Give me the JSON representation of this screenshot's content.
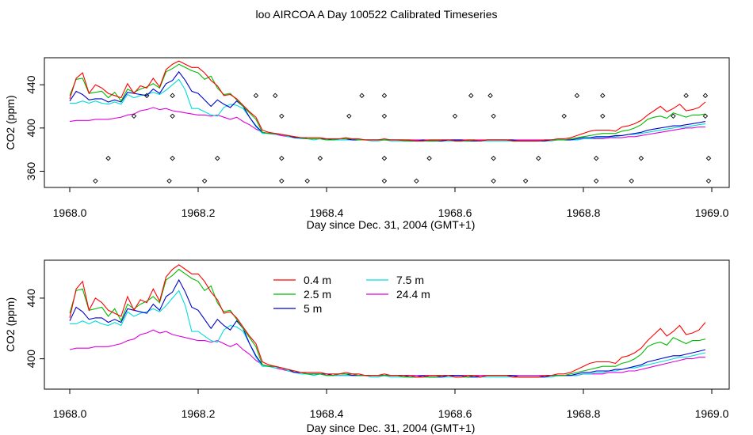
{
  "page": {
    "title": "loo AIRCOA A  Day 100522  Calibrated Timeseries"
  },
  "chart_data": [
    {
      "type": "line",
      "title": "",
      "xlabel": "Day since Dec. 31, 2004 (GMT+1)",
      "ylabel": "CO2 (ppm)",
      "xlim": [
        1968.0,
        1969.0
      ],
      "ylim": [
        345,
        465
      ],
      "xticks": [
        "1968.0",
        "1968.2",
        "1968.4",
        "1968.6",
        "1968.8",
        "1969.0"
      ],
      "yticks": [
        "360",
        "400",
        "440"
      ],
      "grid": false,
      "legend": null,
      "colors": [
        "#ff0000",
        "#00bb00",
        "#0000cc",
        "#00dddd",
        "#dd00dd"
      ],
      "marker_series": {
        "symbol": "diamond",
        "points": [
          [
            1968.04,
            351
          ],
          [
            1968.06,
            372
          ],
          [
            1968.1,
            411
          ],
          [
            1968.12,
            430
          ],
          [
            1968.155,
            351
          ],
          [
            1968.16,
            372
          ],
          [
            1968.16,
            411
          ],
          [
            1968.16,
            430
          ],
          [
            1968.21,
            351
          ],
          [
            1968.23,
            372
          ],
          [
            1968.29,
            430
          ],
          [
            1968.32,
            430
          ],
          [
            1968.33,
            411
          ],
          [
            1968.33,
            372
          ],
          [
            1968.33,
            351
          ],
          [
            1968.37,
            351
          ],
          [
            1968.39,
            372
          ],
          [
            1968.435,
            411
          ],
          [
            1968.455,
            430
          ],
          [
            1968.49,
            430
          ],
          [
            1968.49,
            411
          ],
          [
            1968.49,
            372
          ],
          [
            1968.49,
            351
          ],
          [
            1968.54,
            351
          ],
          [
            1968.56,
            372
          ],
          [
            1968.6,
            411
          ],
          [
            1968.625,
            430
          ],
          [
            1968.655,
            430
          ],
          [
            1968.66,
            411
          ],
          [
            1968.66,
            372
          ],
          [
            1968.66,
            351
          ],
          [
            1968.71,
            351
          ],
          [
            1968.73,
            372
          ],
          [
            1968.77,
            411
          ],
          [
            1968.79,
            430
          ],
          [
            1968.82,
            372
          ],
          [
            1968.82,
            351
          ],
          [
            1968.83,
            430
          ],
          [
            1968.83,
            411
          ],
          [
            1968.875,
            351
          ],
          [
            1968.89,
            372
          ],
          [
            1968.94,
            411
          ],
          [
            1968.96,
            430
          ],
          [
            1968.99,
            430
          ],
          [
            1968.99,
            411
          ],
          [
            1968.995,
            372
          ],
          [
            1968.995,
            351
          ]
        ]
      }
    },
    {
      "type": "line",
      "title": "",
      "xlabel": "Day since Dec. 31, 2004 (GMT+1)",
      "ylabel": "CO2 (ppm)",
      "xlim": [
        1968.0,
        1969.0
      ],
      "ylim": [
        380,
        465
      ],
      "xticks": [
        "1968.0",
        "1968.2",
        "1968.4",
        "1968.6",
        "1968.8",
        "1969.0"
      ],
      "yticks": [
        "400",
        "440"
      ],
      "grid": false,
      "legend": {
        "placement": "top-center",
        "entries": [
          {
            "label": "0.4 m",
            "color": "#ff0000"
          },
          {
            "label": "2.5 m",
            "color": "#00bb00"
          },
          {
            "label": "5 m",
            "color": "#0000cc"
          },
          {
            "label": "7.5 m",
            "color": "#00dddd"
          },
          {
            "label": "24.4 m",
            "color": "#dd00dd"
          }
        ]
      }
    }
  ],
  "series": {
    "x": [
      1968.0,
      1968.01,
      1968.02,
      1968.03,
      1968.04,
      1968.05,
      1968.06,
      1968.07,
      1968.08,
      1968.09,
      1968.1,
      1968.11,
      1968.12,
      1968.13,
      1968.14,
      1968.15,
      1968.16,
      1968.17,
      1968.18,
      1968.19,
      1968.2,
      1968.21,
      1968.22,
      1968.23,
      1968.24,
      1968.25,
      1968.26,
      1968.27,
      1968.28,
      1968.29,
      1968.3,
      1968.31,
      1968.32,
      1968.33,
      1968.34,
      1968.35,
      1968.36,
      1968.37,
      1968.38,
      1968.39,
      1968.4,
      1968.41,
      1968.42,
      1968.43,
      1968.44,
      1968.45,
      1968.46,
      1968.47,
      1968.48,
      1968.49,
      1968.5,
      1968.51,
      1968.52,
      1968.53,
      1968.54,
      1968.55,
      1968.56,
      1968.57,
      1968.58,
      1968.59,
      1968.6,
      1968.61,
      1968.62,
      1968.63,
      1968.64,
      1968.65,
      1968.66,
      1968.67,
      1968.68,
      1968.69,
      1968.7,
      1968.71,
      1968.72,
      1968.73,
      1968.74,
      1968.75,
      1968.76,
      1968.77,
      1968.78,
      1968.79,
      1968.8,
      1968.81,
      1968.82,
      1968.83,
      1968.84,
      1968.85,
      1968.86,
      1968.87,
      1968.88,
      1968.89,
      1968.9,
      1968.91,
      1968.92,
      1968.93,
      1968.94,
      1968.95,
      1968.96,
      1968.97,
      1968.98,
      1968.99
    ],
    "lines": [
      {
        "name": "0.4 m",
        "color": "#ff0000",
        "y": [
          427,
          446,
          451,
          432,
          440,
          437,
          432,
          430,
          428,
          441,
          432,
          439,
          437,
          446,
          438,
          454,
          459,
          462,
          459,
          456,
          456,
          451,
          444,
          439,
          430,
          431,
          427,
          421,
          415,
          410,
          398,
          396,
          395,
          394,
          393,
          392,
          391,
          391,
          391,
          391,
          390,
          390,
          390,
          391,
          390,
          390,
          389,
          389,
          389,
          390,
          389,
          389,
          389,
          389,
          388,
          388,
          389,
          389,
          389,
          389,
          388,
          388,
          389,
          389,
          388,
          389,
          389,
          389,
          389,
          388,
          388,
          388,
          388,
          388,
          389,
          389,
          390,
          390,
          391,
          393,
          395,
          397,
          398,
          398,
          398,
          397,
          401,
          402,
          404,
          407,
          412,
          416,
          420,
          415,
          418,
          422,
          416,
          417,
          419,
          424
        ]
      },
      {
        "name": "2.5 m",
        "color": "#00bb00",
        "y": [
          430,
          445,
          446,
          432,
          433,
          434,
          428,
          433,
          425,
          436,
          433,
          436,
          438,
          441,
          437,
          452,
          455,
          459,
          456,
          453,
          451,
          445,
          448,
          437,
          431,
          432,
          426,
          420,
          414,
          408,
          396,
          395,
          395,
          394,
          393,
          392,
          391,
          390,
          390,
          390,
          389,
          389,
          390,
          390,
          390,
          389,
          389,
          389,
          389,
          389,
          389,
          389,
          388,
          388,
          388,
          388,
          388,
          388,
          389,
          389,
          388,
          388,
          388,
          389,
          388,
          389,
          389,
          389,
          389,
          388,
          388,
          388,
          388,
          388,
          389,
          389,
          389,
          389,
          390,
          391,
          392,
          393,
          394,
          395,
          395,
          395,
          397,
          398,
          400,
          403,
          408,
          410,
          411,
          409,
          414,
          412,
          410,
          412,
          412,
          413
        ]
      },
      {
        "name": "5 m",
        "color": "#0000cc",
        "y": [
          425,
          434,
          431,
          426,
          427,
          427,
          424,
          426,
          424,
          433,
          432,
          431,
          430,
          436,
          432,
          441,
          444,
          452,
          444,
          434,
          432,
          426,
          420,
          426,
          422,
          419,
          425,
          420,
          410,
          402,
          396,
          395,
          395,
          394,
          393,
          391,
          391,
          390,
          390,
          390,
          390,
          389,
          390,
          390,
          389,
          389,
          389,
          389,
          389,
          389,
          389,
          389,
          389,
          388,
          388,
          389,
          388,
          388,
          388,
          389,
          389,
          389,
          388,
          388,
          388,
          389,
          389,
          389,
          389,
          389,
          388,
          388,
          388,
          388,
          388,
          389,
          389,
          389,
          389,
          390,
          391,
          391,
          392,
          392,
          392,
          393,
          393,
          394,
          395,
          396,
          398,
          399,
          400,
          401,
          402,
          402,
          403,
          404,
          405,
          406
        ]
      },
      {
        "name": "7.5 m",
        "color": "#00dddd",
        "y": [
          423,
          423,
          425,
          423,
          425,
          423,
          422,
          424,
          422,
          431,
          428,
          430,
          431,
          433,
          431,
          435,
          440,
          445,
          435,
          418,
          418,
          415,
          412,
          411,
          419,
          422,
          421,
          418,
          410,
          401,
          395,
          395,
          394,
          394,
          392,
          391,
          390,
          390,
          389,
          390,
          389,
          389,
          389,
          389,
          389,
          389,
          389,
          388,
          388,
          389,
          388,
          388,
          388,
          388,
          388,
          388,
          388,
          388,
          388,
          388,
          388,
          388,
          388,
          388,
          388,
          388,
          388,
          388,
          388,
          388,
          388,
          388,
          388,
          388,
          388,
          388,
          389,
          389,
          389,
          389,
          390,
          390,
          391,
          391,
          392,
          392,
          393,
          394,
          394,
          395,
          396,
          397,
          398,
          399,
          400,
          401,
          401,
          402,
          403,
          404
        ]
      },
      {
        "name": "24.4 m",
        "color": "#dd00dd",
        "y": [
          406,
          407,
          407,
          407,
          408,
          408,
          408,
          409,
          410,
          412,
          413,
          416,
          417,
          419,
          417,
          418,
          416,
          415,
          414,
          413,
          412,
          412,
          411,
          412,
          410,
          408,
          410,
          406,
          403,
          399,
          396,
          395,
          394,
          393,
          392,
          391,
          391,
          390,
          390,
          390,
          389,
          389,
          389,
          389,
          389,
          389,
          389,
          389,
          389,
          389,
          389,
          389,
          389,
          389,
          389,
          389,
          389,
          389,
          389,
          389,
          389,
          389,
          389,
          389,
          389,
          389,
          389,
          389,
          389,
          389,
          389,
          389,
          389,
          389,
          389,
          389,
          389,
          389,
          389,
          389,
          390,
          390,
          390,
          390,
          391,
          391,
          391,
          392,
          392,
          393,
          394,
          395,
          396,
          397,
          398,
          399,
          400,
          400,
          401,
          401
        ]
      }
    ]
  }
}
